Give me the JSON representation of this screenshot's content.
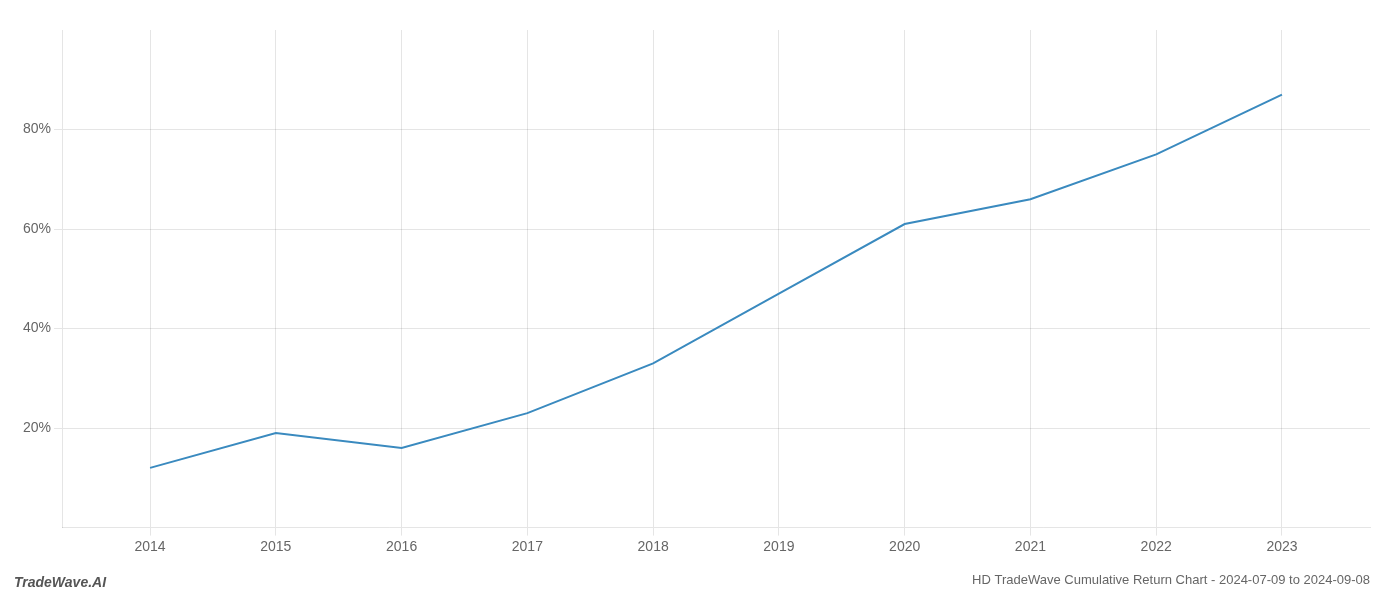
{
  "chart_data": {
    "type": "line",
    "title": "HD TradeWave Cumulative Return Chart - 2024-07-09 to 2024-09-08",
    "annotations": [
      "TradeWave.AI"
    ],
    "x": [
      2014,
      2015,
      2016,
      2017,
      2018,
      2019,
      2020,
      2021,
      2022,
      2023
    ],
    "values": [
      12,
      19,
      16,
      23,
      33,
      47,
      61,
      66,
      75,
      87
    ],
    "color": "#3a8abf",
    "xlim": [
      2013.3,
      2023.7
    ],
    "xticks": [
      2014,
      2015,
      2016,
      2017,
      2018,
      2019,
      2020,
      2021,
      2022,
      2023
    ],
    "ylim": [
      0,
      100
    ],
    "yticks": [
      {
        "value": 20,
        "label": "20%"
      },
      {
        "value": 40,
        "label": "40%"
      },
      {
        "value": 60,
        "label": "60%"
      },
      {
        "value": 80,
        "label": "80%"
      }
    ],
    "grid": true
  }
}
